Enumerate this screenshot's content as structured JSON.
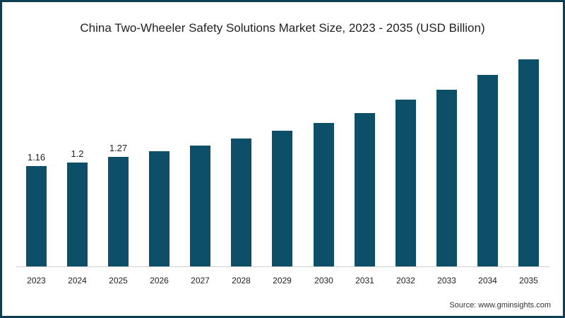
{
  "title": "China Two-Wheeler Safety Solutions Market Size, 2023 - 2035 (USD Billion)",
  "source": "Source: www.gminsights.com",
  "colors": {
    "bar": "#0d4f68",
    "border": "#0f3d52",
    "axis": "#d0d0d0"
  },
  "chart_data": {
    "type": "bar",
    "title": "China Two-Wheeler Safety Solutions Market Size, 2023 - 2035 (USD Billion)",
    "xlabel": "",
    "ylabel": "USD Billion",
    "categories": [
      "2023",
      "2024",
      "2025",
      "2026",
      "2027",
      "2028",
      "2029",
      "2030",
      "2031",
      "2032",
      "2033",
      "2034",
      "2035"
    ],
    "values": [
      1.16,
      1.2,
      1.27,
      1.33,
      1.4,
      1.48,
      1.57,
      1.66,
      1.77,
      1.93,
      2.04,
      2.21,
      2.39
    ],
    "data_labels": {
      "2023": "1.16",
      "2024": "1.2",
      "2025": "1.27"
    },
    "ylim": [
      0,
      2.5
    ],
    "grid": false,
    "legend": null,
    "annotations": [
      "Source: www.gminsights.com"
    ]
  }
}
